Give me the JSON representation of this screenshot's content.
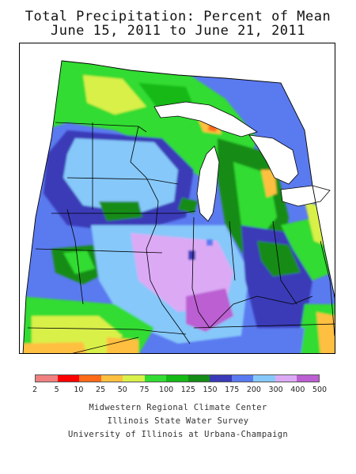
{
  "title": {
    "line1": "Total Precipitation: Percent of Mean",
    "line2": "June 15, 2011 to June 21, 2011"
  },
  "legend": {
    "labels": [
      "2",
      "5",
      "10",
      "25",
      "50",
      "75",
      "100",
      "125",
      "150",
      "175",
      "200",
      "300",
      "400",
      "500"
    ],
    "colors": [
      "#f08080",
      "#ff0000",
      "#ff6a1a",
      "#ffbf40",
      "#d9f04a",
      "#32dc32",
      "#14b914",
      "#158c15",
      "#3a3ab8",
      "#5a7af0",
      "#86c8fa",
      "#dcaaf5",
      "#bb5fd2"
    ]
  },
  "credits": {
    "line1": "Midwestern Regional Climate Center",
    "line2": "Illinois State Water Survey",
    "line3": "University of Illinois at Urbana-Champaign"
  }
}
